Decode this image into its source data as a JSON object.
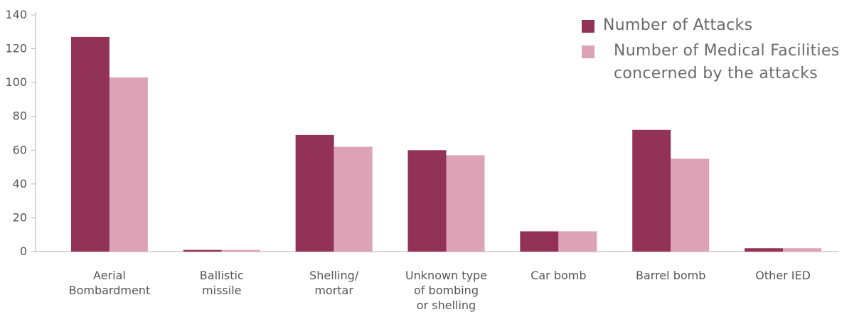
{
  "chart_data": {
    "type": "bar",
    "categories": [
      [
        "Aerial",
        "Bombardment"
      ],
      [
        "Ballistic",
        "missile"
      ],
      [
        "Shelling/",
        "mortar"
      ],
      [
        "Unknown type",
        "of bombing",
        "or shelling"
      ],
      [
        "Car bomb"
      ],
      [
        "Barrel bomb"
      ],
      [
        "Other IED"
      ]
    ],
    "series": [
      {
        "name": "Number of Attacks",
        "color": "#923257",
        "values": [
          127,
          1,
          69,
          60,
          12,
          72,
          2
        ]
      },
      {
        "name": "Number of Medical Facilities concerned by the attacks",
        "color": "#dca3b6",
        "values": [
          103,
          1,
          62,
          57,
          12,
          55,
          2
        ]
      }
    ],
    "title": "",
    "xlabel": "",
    "ylabel": "",
    "ylim": [
      0,
      140
    ],
    "yticks": [
      0,
      20,
      40,
      60,
      80,
      100,
      120,
      140
    ],
    "grid": false,
    "legend_position": "top-right"
  },
  "legend": {
    "series1_line1": "Number of Attacks",
    "series2_line1": "Number of Medical Facilities",
    "series2_line2": "concerned by the attacks"
  }
}
